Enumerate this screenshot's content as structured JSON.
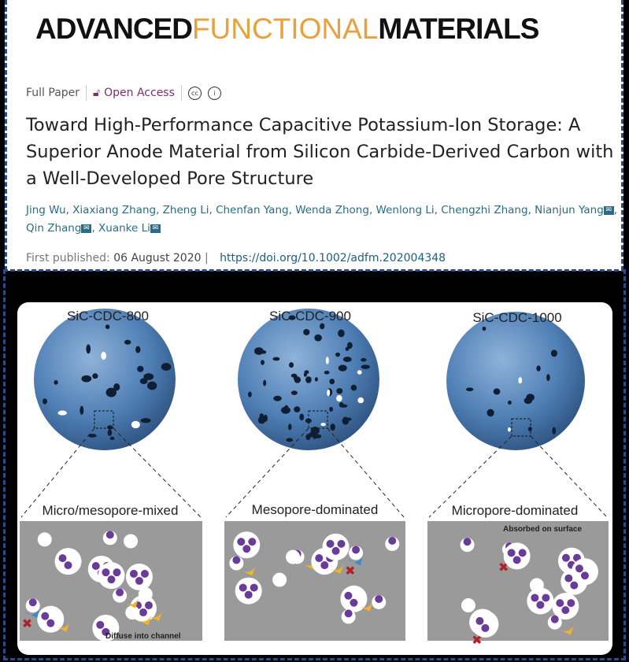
{
  "journal": {
    "logo_part1": "ADVANCED",
    "logo_part2": "FUNCTIONAL",
    "logo_part3": "MATERIALS",
    "colors": {
      "dark": "#111111",
      "accent": "#e8a13c"
    }
  },
  "article": {
    "type": "Full Paper",
    "access": "Open Access",
    "license_icons": [
      "cc-icon",
      "by-icon"
    ],
    "title": "Toward High-Performance Capacitive Potassium-Ion Storage: A Superior Anode Material from Silicon Carbide-Derived Carbon with a Well-Developed Pore Structure",
    "authors": [
      "Jing Wu",
      "Xiaxiang Zhang",
      "Zheng Li",
      "Chenfan Yang",
      "Wenda Zhong",
      "Wenlong Li",
      "Chengzhi Zhang",
      "Nianjun Yang",
      "Qin Zhang",
      "Xuanke Li"
    ],
    "corresponding_mark": "✉",
    "first_published_label": "First published:",
    "first_published_date": "06 August 2020",
    "doi": "https://doi.org/10.1002/adfm.202004348"
  },
  "figure": {
    "samples": [
      {
        "name": "SiC-CDC-800",
        "panel": "Micro/mesopore-mixed"
      },
      {
        "name": "SiC-CDC-900",
        "panel": "Mesopore-dominated"
      },
      {
        "name": "SiC-CDC-1000",
        "panel": "Micropore-dominated"
      }
    ],
    "annotations": {
      "diffuse": "Diffuse into channel",
      "absorbed": "Absorbed on surface"
    }
  }
}
